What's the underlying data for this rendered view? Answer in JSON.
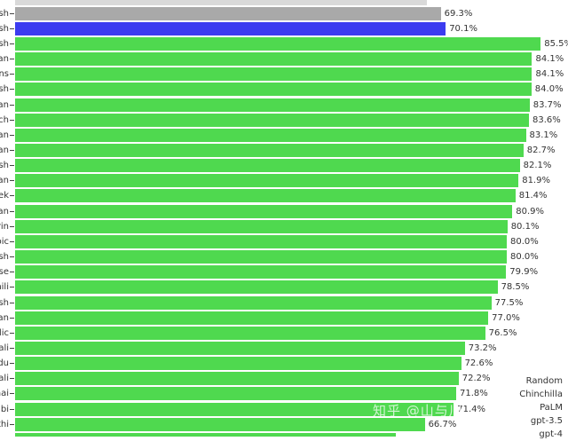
{
  "chart_data": {
    "type": "bar",
    "orientation": "horizontal",
    "categories": [
      "",
      "sh",
      "sh",
      "sh",
      "an",
      "ns",
      "sh",
      "an",
      "ch",
      "an",
      "an",
      "sh",
      "an",
      "ek",
      "an",
      "rin",
      "bic",
      "sh",
      "ese",
      "hili",
      "sh",
      "an",
      "dic",
      "ali",
      "du",
      "pali",
      "hai",
      "abi",
      "thi",
      ""
    ],
    "values": [
      null,
      69.3,
      70.1,
      85.5,
      84.1,
      84.1,
      84.0,
      83.7,
      83.6,
      83.1,
      82.7,
      82.1,
      81.9,
      81.4,
      80.9,
      80.1,
      80.0,
      80.0,
      79.9,
      78.5,
      77.5,
      77.0,
      76.5,
      73.2,
      72.6,
      72.2,
      71.8,
      71.4,
      66.7,
      null
    ],
    "value_labels": [
      "",
      "69.3%",
      "70.1%",
      "85.5%",
      "84.1%",
      "84.1%",
      "84.0%",
      "83.7%",
      "83.6%",
      "83.1%",
      "82.7%",
      "82.1%",
      "81.9%",
      "81.4%",
      "80.9%",
      "80.1%",
      "80.0%",
      "80.0%",
      "79.9%",
      "78.5%",
      "77.5%",
      "77.0%",
      "76.5%",
      "73.2%",
      "72.6%",
      "72.2%",
      "71.8%",
      "71.4%",
      "66.7%",
      ""
    ],
    "bar_colors": [
      "#d9d9d9",
      "#a9a9a9",
      "#3c3cf0",
      "#4fd94f",
      "#4fd94f",
      "#4fd94f",
      "#4fd94f",
      "#4fd94f",
      "#4fd94f",
      "#4fd94f",
      "#4fd94f",
      "#4fd94f",
      "#4fd94f",
      "#4fd94f",
      "#4fd94f",
      "#4fd94f",
      "#4fd94f",
      "#4fd94f",
      "#4fd94f",
      "#4fd94f",
      "#4fd94f",
      "#4fd94f",
      "#4fd94f",
      "#4fd94f",
      "#4fd94f",
      "#4fd94f",
      "#4fd94f",
      "#4fd94f",
      "#4fd94f",
      "#4fd94f"
    ],
    "partial_values": {
      "top": 67.0,
      "bottom": 62.0
    },
    "legend": [
      "Random",
      "Chinchilla",
      "PaLM",
      "gpt-3.5",
      "gpt-4"
    ],
    "legend_position": "bottom-right",
    "xlim": [
      0,
      86
    ],
    "grid": false
  },
  "watermark": "知乎 @山与川"
}
